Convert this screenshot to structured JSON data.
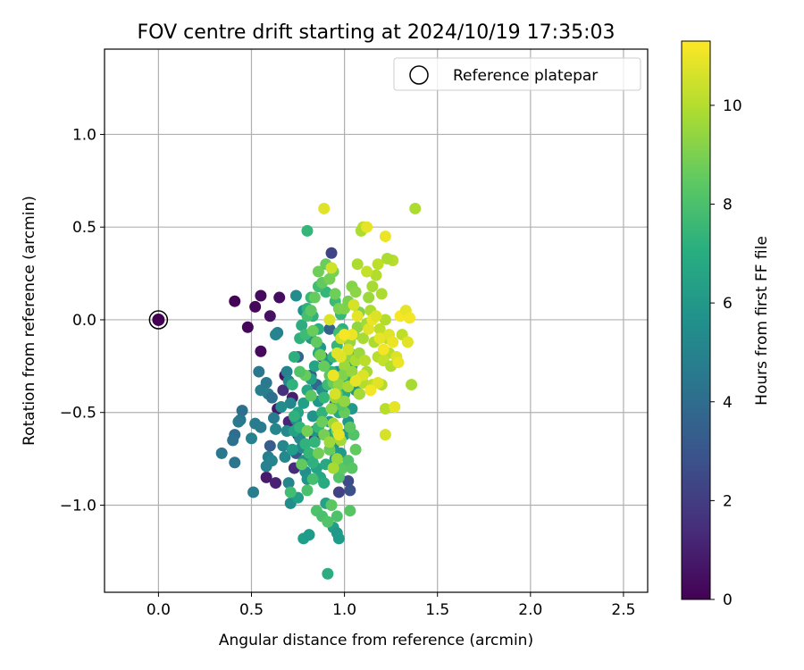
{
  "chart_data": {
    "type": "scatter",
    "title": "FOV centre drift starting at 2024/10/19 17:35:03",
    "xlabel": "Angular distance from reference (arcmin)",
    "ylabel": "Rotation from reference (arcmin)",
    "xlim": [
      -0.29,
      2.63
    ],
    "ylim": [
      -1.47,
      1.46
    ],
    "xticks": [
      {
        "v": 0.0,
        "label": "0.0"
      },
      {
        "v": 0.5,
        "label": "0.5"
      },
      {
        "v": 1.0,
        "label": "1.0"
      },
      {
        "v": 1.5,
        "label": "1.5"
      },
      {
        "v": 2.0,
        "label": "2.0"
      },
      {
        "v": 2.5,
        "label": "2.5"
      }
    ],
    "yticks": [
      {
        "v": -1.0,
        "label": "−1.0"
      },
      {
        "v": -0.5,
        "label": "−0.5"
      },
      {
        "v": 0.0,
        "label": "0.0"
      },
      {
        "v": 0.5,
        "label": "0.5"
      },
      {
        "v": 1.0,
        "label": "1.0"
      }
    ],
    "grid": true,
    "legend": {
      "position": "top-right",
      "entries": [
        "Reference platepar"
      ]
    },
    "colorbar": {
      "label": "Hours from first FF file",
      "colormap": "viridis",
      "range": [
        0,
        11.3
      ],
      "ticks": [
        {
          "v": 0,
          "label": "0"
        },
        {
          "v": 2,
          "label": "2"
        },
        {
          "v": 4,
          "label": "4"
        },
        {
          "v": 6,
          "label": "6"
        },
        {
          "v": 8,
          "label": "8"
        },
        {
          "v": 10,
          "label": "10"
        }
      ]
    },
    "reference_point": {
      "x": 0.0,
      "y": 0.0
    },
    "points": [
      [
        0.41,
        0.1,
        0.1
      ],
      [
        0.55,
        0.13,
        0.3
      ],
      [
        0.65,
        0.12,
        0.4
      ],
      [
        0.52,
        0.07,
        0.2
      ],
      [
        0.48,
        -0.04,
        0.2
      ],
      [
        0.6,
        0.02,
        0.5
      ],
      [
        0.55,
        -0.17,
        0.3
      ],
      [
        0.68,
        -0.3,
        0.6
      ],
      [
        0.72,
        -0.42,
        0.9
      ],
      [
        0.64,
        -0.48,
        0.7
      ],
      [
        0.7,
        -0.55,
        1.2
      ],
      [
        0.75,
        -0.62,
        1.0
      ],
      [
        0.67,
        -0.38,
        1.5
      ],
      [
        0.58,
        -0.85,
        0.8
      ],
      [
        0.63,
        -0.88,
        1.1
      ],
      [
        0.73,
        -0.8,
        1.4
      ],
      [
        0.93,
        0.36,
        2.3
      ],
      [
        0.88,
        -0.2,
        2.0
      ],
      [
        0.84,
        -0.64,
        1.8
      ],
      [
        1.02,
        -0.87,
        2.6
      ],
      [
        1.03,
        -0.92,
        2.8
      ],
      [
        0.97,
        -0.93,
        2.2
      ],
      [
        1.08,
        -0.4,
        2.9
      ],
      [
        0.98,
        -0.28,
        3.1
      ],
      [
        0.82,
        -0.3,
        3.4
      ],
      [
        0.74,
        -0.72,
        3.0
      ],
      [
        0.6,
        -0.68,
        3.3
      ],
      [
        0.75,
        -0.2,
        3.6
      ],
      [
        0.92,
        -0.05,
        3.5
      ],
      [
        0.85,
        -0.35,
        3.7
      ],
      [
        0.95,
        -0.45,
        3.9
      ],
      [
        0.41,
        -0.62,
        4.0
      ],
      [
        0.4,
        -0.65,
        4.2
      ],
      [
        0.34,
        -0.72,
        4.5
      ],
      [
        0.45,
        -0.49,
        4.1
      ],
      [
        0.44,
        -0.54,
        4.3
      ],
      [
        0.43,
        -0.55,
        4.6
      ],
      [
        0.51,
        -0.93,
        4.8
      ],
      [
        0.41,
        -0.77,
        4.4
      ],
      [
        0.55,
        -0.58,
        4.7
      ],
      [
        0.55,
        -0.38,
        4.9
      ],
      [
        0.54,
        -0.28,
        4.5
      ],
      [
        0.58,
        -0.34,
        4.6
      ],
      [
        0.59,
        -0.4,
        4.8
      ],
      [
        0.61,
        -0.42,
        4.2
      ],
      [
        0.59,
        -0.74,
        4.9
      ],
      [
        0.61,
        -0.76,
        5.1
      ],
      [
        0.58,
        -0.79,
        5.0
      ],
      [
        0.62,
        -0.53,
        4.7
      ],
      [
        0.63,
        -0.59,
        5.2
      ],
      [
        0.64,
        -0.07,
        4.9
      ],
      [
        0.63,
        -0.08,
        5.1
      ],
      [
        0.67,
        -0.68,
        5.2
      ],
      [
        0.68,
        -0.74,
        5.3
      ],
      [
        0.7,
        -0.88,
        5.1
      ],
      [
        0.71,
        -0.99,
        5.5
      ],
      [
        0.69,
        -0.6,
        5.4
      ],
      [
        0.69,
        -0.28,
        5.0
      ],
      [
        0.7,
        -0.33,
        5.3
      ],
      [
        0.71,
        -0.45,
        5.2
      ],
      [
        0.66,
        -0.47,
        5.5
      ],
      [
        0.52,
        -0.56,
        4.7
      ],
      [
        0.5,
        -0.64,
        5.0
      ],
      [
        0.74,
        -0.54,
        5.6
      ],
      [
        0.76,
        -0.64,
        5.4
      ],
      [
        0.77,
        -0.69,
        5.3
      ],
      [
        0.78,
        -0.76,
        5.7
      ],
      [
        0.79,
        -0.82,
        5.6
      ],
      [
        0.8,
        -0.86,
        5.8
      ],
      [
        0.82,
        -0.74,
        5.5
      ],
      [
        0.84,
        -0.6,
        5.7
      ],
      [
        0.83,
        -0.52,
        5.8
      ],
      [
        0.86,
        -0.44,
        5.9
      ],
      [
        0.88,
        -0.38,
        5.6
      ],
      [
        0.92,
        -0.55,
        5.9
      ],
      [
        0.94,
        -0.68,
        5.8
      ],
      [
        0.95,
        -0.75,
        6.0
      ],
      [
        0.98,
        -0.72,
        6.1
      ],
      [
        1.0,
        -0.62,
        6.0
      ],
      [
        1.02,
        -0.55,
        5.9
      ],
      [
        1.04,
        -0.48,
        6.1
      ],
      [
        1.06,
        -0.38,
        6.0
      ],
      [
        0.99,
        -0.35,
        6.2
      ],
      [
        0.96,
        -0.28,
        5.8
      ],
      [
        0.91,
        -0.22,
        6.1
      ],
      [
        0.87,
        -0.15,
        5.9
      ],
      [
        0.82,
        -0.1,
        6.0
      ],
      [
        0.78,
        0.05,
        5.7
      ],
      [
        0.74,
        0.13,
        5.5
      ],
      [
        0.78,
        -1.18,
        6.3
      ],
      [
        0.81,
        -1.16,
        6.2
      ],
      [
        0.94,
        -1.12,
        6.4
      ],
      [
        0.96,
        -1.15,
        6.0
      ],
      [
        0.97,
        -1.18,
        6.2
      ],
      [
        0.9,
        -0.99,
        6.5
      ],
      [
        0.75,
        -0.96,
        6.4
      ],
      [
        0.72,
        -0.7,
        6.3
      ],
      [
        0.73,
        -0.6,
        6.5
      ],
      [
        0.75,
        -0.5,
        6.6
      ],
      [
        0.78,
        -0.45,
        6.4
      ],
      [
        0.8,
        -0.38,
        6.7
      ],
      [
        0.82,
        -0.32,
        6.5
      ],
      [
        0.84,
        -0.25,
        6.6
      ],
      [
        0.86,
        -0.18,
        6.8
      ],
      [
        0.85,
        -0.8,
        6.6
      ],
      [
        0.87,
        -0.85,
        6.7
      ],
      [
        0.89,
        -0.88,
        6.9
      ],
      [
        0.9,
        -0.78,
        6.8
      ],
      [
        0.92,
        -0.7,
        6.7
      ],
      [
        0.93,
        -0.62,
        6.9
      ],
      [
        0.95,
        -0.58,
        6.6
      ],
      [
        0.97,
        -0.5,
        6.8
      ],
      [
        0.98,
        -0.44,
        7.0
      ],
      [
        1.0,
        -0.4,
        6.9
      ],
      [
        1.02,
        -0.32,
        7.0
      ],
      [
        1.04,
        -0.25,
        6.9
      ],
      [
        1.03,
        -0.18,
        7.1
      ],
      [
        1.01,
        -0.1,
        7.0
      ],
      [
        0.99,
        -0.05,
        7.2
      ],
      [
        0.91,
        -1.37,
        7.0
      ],
      [
        0.86,
        -0.05,
        7.1
      ],
      [
        0.83,
        0.02,
        7.2
      ],
      [
        0.8,
        0.06,
        7.3
      ],
      [
        0.77,
        -0.03,
        7.0
      ],
      [
        0.76,
        -0.1,
        7.2
      ],
      [
        0.73,
        -0.2,
        7.1
      ],
      [
        0.72,
        -0.35,
        7.3
      ],
      [
        0.73,
        -0.52,
        7.2
      ],
      [
        0.76,
        -0.58,
        7.4
      ],
      [
        0.79,
        -0.67,
        7.3
      ],
      [
        0.81,
        -0.72,
        7.5
      ],
      [
        0.83,
        -0.77,
        7.2
      ],
      [
        0.84,
        -0.66,
        7.4
      ],
      [
        0.86,
        -0.58,
        7.6
      ],
      [
        0.88,
        -0.5,
        7.3
      ],
      [
        0.89,
        -0.42,
        7.5
      ],
      [
        0.91,
        -0.35,
        7.7
      ],
      [
        0.93,
        -0.28,
        7.4
      ],
      [
        0.94,
        -0.2,
        7.6
      ],
      [
        0.96,
        -0.14,
        7.5
      ],
      [
        0.97,
        -0.07,
        7.8
      ],
      [
        0.98,
        0.03,
        7.6
      ],
      [
        0.95,
        0.1,
        7.7
      ],
      [
        0.9,
        0.15,
        7.5
      ],
      [
        0.86,
        0.18,
        7.8
      ],
      [
        0.82,
        0.12,
        7.6
      ],
      [
        0.8,
        0.02,
        7.9
      ],
      [
        0.79,
        -0.08,
        7.7
      ],
      [
        0.8,
        0.48,
        7.5
      ],
      [
        0.71,
        -0.93,
        7.8
      ],
      [
        0.8,
        -0.92,
        8.0
      ],
      [
        0.83,
        -0.86,
        7.9
      ],
      [
        0.85,
        -1.03,
        8.1
      ],
      [
        0.88,
        -1.06,
        8.0
      ],
      [
        0.91,
        -1.09,
        8.2
      ],
      [
        0.96,
        -1.06,
        8.1
      ],
      [
        1.03,
        -1.03,
        8.3
      ],
      [
        0.93,
        -1.0,
        8.4
      ],
      [
        0.97,
        -0.85,
        8.2
      ],
      [
        0.99,
        -0.8,
        8.4
      ],
      [
        1.02,
        -0.76,
        8.1
      ],
      [
        1.04,
        -0.8,
        8.3
      ],
      [
        1.06,
        -0.7,
        8.5
      ],
      [
        1.05,
        -0.62,
        8.2
      ],
      [
        1.03,
        -0.58,
        8.4
      ],
      [
        1.0,
        -0.5,
        8.6
      ],
      [
        0.98,
        -0.46,
        8.3
      ],
      [
        0.96,
        -0.4,
        8.5
      ],
      [
        0.94,
        -0.34,
        8.7
      ],
      [
        0.92,
        -0.3,
        8.4
      ],
      [
        0.89,
        -0.25,
        8.6
      ],
      [
        0.87,
        -0.19,
        8.8
      ],
      [
        0.85,
        -0.12,
        8.5
      ],
      [
        0.83,
        -0.06,
        8.7
      ],
      [
        0.82,
        0.05,
        8.4
      ],
      [
        0.84,
        0.12,
        8.6
      ],
      [
        0.86,
        0.26,
        8.8
      ],
      [
        0.88,
        0.2,
        8.5
      ],
      [
        0.9,
        0.3,
        8.7
      ],
      [
        0.92,
        0.22,
        8.9
      ],
      [
        0.94,
        0.26,
        9.0
      ],
      [
        0.95,
        0.14,
        8.8
      ],
      [
        0.97,
        0.06,
        9.0
      ],
      [
        0.92,
        -0.7,
        8.6
      ],
      [
        0.89,
        -0.62,
        8.9
      ],
      [
        0.88,
        -0.55,
        8.7
      ],
      [
        0.82,
        -0.41,
        8.4
      ],
      [
        0.79,
        -0.3,
        8.6
      ],
      [
        0.76,
        -0.28,
        8.2
      ],
      [
        0.8,
        -0.6,
        8.9
      ],
      [
        0.77,
        -0.78,
        8.5
      ],
      [
        0.86,
        -0.72,
        8.8
      ],
      [
        1.0,
        0.06,
        9.1
      ],
      [
        1.02,
        0.1,
        9.0
      ],
      [
        1.04,
        0.18,
        9.2
      ],
      [
        1.06,
        0.15,
        9.3
      ],
      [
        1.08,
        0.04,
        9.1
      ],
      [
        1.07,
        -0.04,
        9.4
      ],
      [
        1.05,
        -0.08,
        9.2
      ],
      [
        1.03,
        -0.12,
        9.5
      ],
      [
        1.02,
        -0.2,
        9.3
      ],
      [
        1.0,
        -0.25,
        9.6
      ],
      [
        0.99,
        -0.3,
        9.1
      ],
      [
        0.97,
        -0.35,
        9.4
      ],
      [
        0.95,
        -0.42,
        9.5
      ],
      [
        0.93,
        -0.48,
        9.2
      ],
      [
        0.94,
        -0.56,
        9.6
      ],
      [
        0.96,
        -0.6,
        9.3
      ],
      [
        0.98,
        -0.65,
        9.7
      ],
      [
        1.0,
        -0.44,
        9.4
      ],
      [
        1.02,
        -0.36,
        9.8
      ],
      [
        1.04,
        -0.28,
        9.5
      ],
      [
        1.06,
        -0.22,
        9.9
      ],
      [
        1.08,
        -0.18,
        9.6
      ],
      [
        1.1,
        -0.1,
        9.8
      ],
      [
        1.12,
        -0.02,
        9.7
      ],
      [
        1.14,
        0.05,
        9.9
      ],
      [
        1.13,
        0.12,
        9.6
      ],
      [
        1.15,
        0.18,
        9.8
      ],
      [
        1.17,
        0.24,
        10.0
      ],
      [
        1.16,
        -0.12,
        9.9
      ],
      [
        1.18,
        -0.2,
        10.1
      ],
      [
        1.12,
        -0.28,
        9.8
      ],
      [
        1.1,
        -0.34,
        10.0
      ],
      [
        1.08,
        -0.4,
        9.7
      ],
      [
        1.07,
        0.3,
        9.9
      ],
      [
        1.1,
        0.5,
        10.2
      ],
      [
        1.09,
        0.48,
        9.9
      ],
      [
        0.96,
        -0.75,
        9.5
      ],
      [
        0.94,
        -0.8,
        9.8
      ],
      [
        0.92,
        -0.66,
        9.6
      ],
      [
        1.11,
        -0.22,
        10.1
      ],
      [
        1.2,
        0.14,
        9.9
      ],
      [
        1.22,
        0.0,
        10.0
      ],
      [
        1.23,
        -0.1,
        10.2
      ],
      [
        1.24,
        -0.18,
        10.1
      ],
      [
        1.2,
        -0.35,
        10.0
      ],
      [
        1.22,
        -0.48,
        10.1
      ],
      [
        1.21,
        -0.22,
        10.3
      ],
      [
        1.19,
        -0.05,
        10.2
      ],
      [
        1.25,
        -0.25,
        10.0
      ],
      [
        1.26,
        0.32,
        10.1
      ],
      [
        1.23,
        0.33,
        9.9
      ],
      [
        1.18,
        0.3,
        10.2
      ],
      [
        1.31,
        -0.08,
        10.2
      ],
      [
        1.36,
        -0.35,
        9.8
      ],
      [
        1.38,
        0.6,
        9.9
      ],
      [
        1.12,
        0.26,
        10.3
      ],
      [
        1.15,
        -0.35,
        10.2
      ],
      [
        0.89,
        0.6,
        10.8
      ],
      [
        1.12,
        0.5,
        10.9
      ],
      [
        1.22,
        0.45,
        11.0
      ],
      [
        0.93,
        0.28,
        10.5
      ],
      [
        0.92,
        0.0,
        10.7
      ],
      [
        1.05,
        0.08,
        10.6
      ],
      [
        1.07,
        0.02,
        10.9
      ],
      [
        1.13,
        -0.05,
        10.8
      ],
      [
        1.15,
        0.0,
        11.0
      ],
      [
        1.17,
        0.02,
        10.7
      ],
      [
        1.19,
        -0.1,
        10.9
      ],
      [
        1.21,
        -0.16,
        11.1
      ],
      [
        1.24,
        -0.08,
        10.8
      ],
      [
        1.26,
        -0.12,
        11.0
      ],
      [
        1.28,
        -0.2,
        10.7
      ],
      [
        1.3,
        0.02,
        11.2
      ],
      [
        1.33,
        0.05,
        10.9
      ],
      [
        1.35,
        0.01,
        11.1
      ],
      [
        1.34,
        -0.12,
        10.8
      ],
      [
        1.29,
        -0.23,
        11.0
      ],
      [
        1.27,
        -0.47,
        10.9
      ],
      [
        1.22,
        -0.62,
        10.6
      ],
      [
        1.18,
        -0.34,
        10.8
      ],
      [
        1.14,
        -0.38,
        11.1
      ],
      [
        1.1,
        -0.3,
        10.7
      ],
      [
        1.06,
        -0.33,
        10.9
      ],
      [
        1.04,
        -0.08,
        11.0
      ],
      [
        1.02,
        -0.16,
        10.6
      ],
      [
        0.98,
        -0.2,
        10.8
      ],
      [
        0.96,
        -0.58,
        10.7
      ],
      [
        0.97,
        -0.62,
        10.9
      ],
      [
        0.95,
        -0.4,
        10.6
      ],
      [
        0.94,
        -0.3,
        11.0
      ],
      [
        0.96,
        -0.18,
        10.8
      ],
      [
        0.98,
        -0.1,
        10.5
      ],
      [
        1.0,
        -0.08,
        11.2
      ]
    ]
  }
}
